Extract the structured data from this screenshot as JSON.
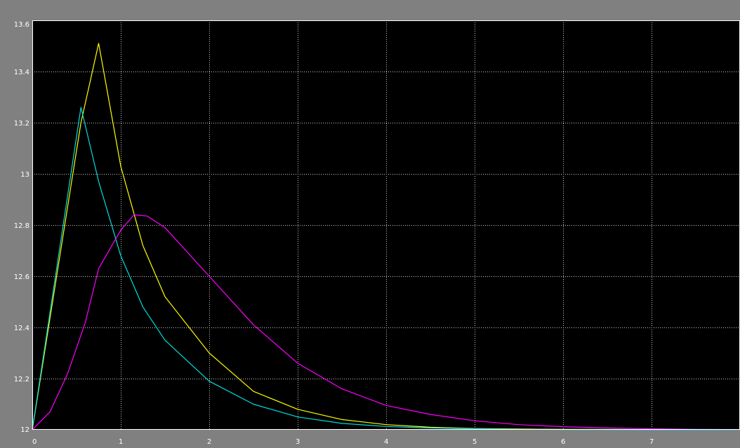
{
  "chart_data": {
    "type": "line",
    "title": "",
    "xlabel": "",
    "ylabel": "",
    "xlim": [
      0,
      8
    ],
    "ylim": [
      12,
      13.6
    ],
    "grid": true,
    "legend": "none",
    "x_ticks": [
      "0",
      "1",
      "2",
      "3",
      "4",
      "5",
      "6",
      "7"
    ],
    "y_ticks": [
      "12",
      "12.2",
      "12.4",
      "12.6",
      "12.8",
      "13",
      "13.2",
      "13.4",
      "13.6"
    ],
    "x_tick_values": [
      0,
      1,
      2,
      3,
      4,
      5,
      6,
      7
    ],
    "y_tick_values": [
      12,
      12.2,
      12.4,
      12.6,
      12.8,
      13,
      13.2,
      13.4,
      13.6
    ],
    "series": [
      {
        "color": "#ffff00",
        "x": [
          0,
          0.55,
          0.75,
          1.0,
          1.25,
          1.5,
          2.0,
          2.5,
          3.0,
          3.5,
          4.0,
          4.5,
          5.0,
          5.5,
          6.0,
          7.0,
          8.0
        ],
        "y": [
          12.0,
          13.2,
          13.51,
          13.03,
          12.72,
          12.52,
          12.3,
          12.15,
          12.08,
          12.04,
          12.02,
          12.01,
          12.005,
          12.003,
          12.002,
          12.001,
          12.0
        ]
      },
      {
        "color": "#00dede",
        "x": [
          0,
          0.55,
          0.75,
          1.0,
          1.25,
          1.5,
          2.0,
          2.5,
          3.0,
          3.5,
          4.0,
          4.5,
          5.0,
          5.5,
          6.0,
          7.0,
          8.0
        ],
        "y": [
          12.0,
          13.26,
          12.97,
          12.68,
          12.48,
          12.35,
          12.19,
          12.1,
          12.05,
          12.025,
          12.013,
          12.007,
          12.004,
          12.002,
          12.001,
          12.0,
          12.0
        ]
      },
      {
        "color": "#ff00ff",
        "x": [
          0,
          0.2,
          0.4,
          0.6,
          0.75,
          1.0,
          1.15,
          1.3,
          1.5,
          2.0,
          2.5,
          3.0,
          3.5,
          4.0,
          4.5,
          5.0,
          5.5,
          6.0,
          6.5,
          7.0,
          7.5,
          8.0
        ],
        "y": [
          12.0,
          12.07,
          12.22,
          12.42,
          12.63,
          12.78,
          12.84,
          12.835,
          12.79,
          12.6,
          12.41,
          12.26,
          12.16,
          12.095,
          12.06,
          12.035,
          12.02,
          12.012,
          12.007,
          12.004,
          12.002,
          12.001
        ]
      }
    ]
  }
}
